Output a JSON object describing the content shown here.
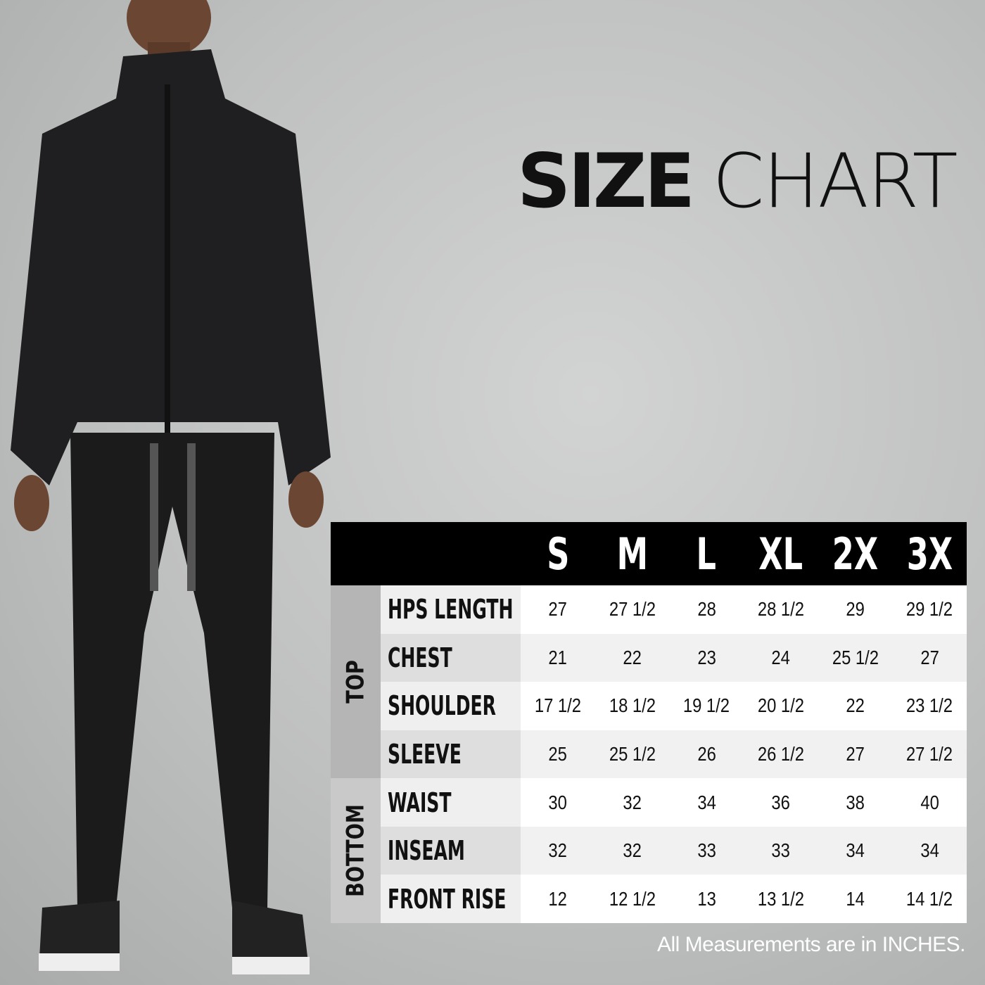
{
  "title": {
    "bold": "SIZE",
    "light": "CHART"
  },
  "table": {
    "sizes": [
      "S",
      "M",
      "L",
      "XL",
      "2X",
      "3X"
    ],
    "groups": [
      {
        "label": "TOP",
        "rows": 4
      },
      {
        "label": "BOTTOM",
        "rows": 3
      }
    ],
    "rows": [
      {
        "label": "HPS LENGTH",
        "values": [
          "27",
          "27 1/2",
          "28",
          "28 1/2",
          "29",
          "29 1/2"
        ]
      },
      {
        "label": "CHEST",
        "values": [
          "21",
          "22",
          "23",
          "24",
          "25 1/2",
          "27"
        ]
      },
      {
        "label": "SHOULDER",
        "values": [
          "17 1/2",
          "18 1/2",
          "19 1/2",
          "20 1/2",
          "22",
          "23 1/2"
        ]
      },
      {
        "label": "SLEEVE",
        "values": [
          "25",
          "25 1/2",
          "26",
          "26 1/2",
          "27",
          "27 1/2"
        ]
      },
      {
        "label": "WAIST",
        "values": [
          "30",
          "32",
          "34",
          "36",
          "38",
          "40"
        ]
      },
      {
        "label": "INSEAM",
        "values": [
          "32",
          "32",
          "33",
          "33",
          "34",
          "34"
        ]
      },
      {
        "label": "FRONT RISE",
        "values": [
          "12",
          "12 1/2",
          "13",
          "13 1/2",
          "14",
          "14 1/2"
        ]
      }
    ]
  },
  "note": "All Measurements are in INCHES.",
  "colors": {
    "header": "#000000",
    "group_top": "#b5b5b5",
    "group_bottom": "#c9c9c9"
  }
}
